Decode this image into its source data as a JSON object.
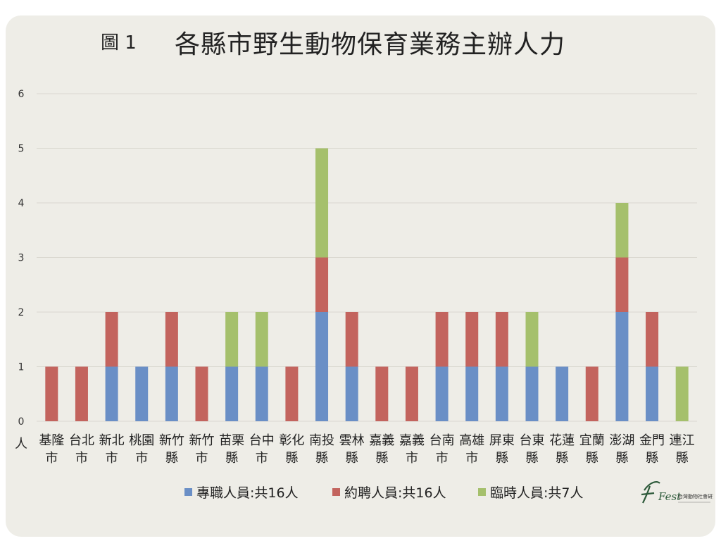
{
  "figure_label": "圖 1",
  "title": "各縣市野生動物保育業務主辦人力",
  "colors": {
    "fulltime": "#6a8fc6",
    "contract": "#c3645e",
    "temporary": "#a5c06c",
    "grid": "#dad8d0",
    "background": "#eeede7"
  },
  "logo": {
    "script_text": "Fest",
    "caption": "台灣動物社會研究會",
    "icon": "organization-logo"
  },
  "chart_data": {
    "type": "bar",
    "stacked": true,
    "title": "各縣市野生動物保育業務主辦人力",
    "ylabel": "人",
    "xlabel": "",
    "ylim": [
      0,
      6
    ],
    "yticks": [
      0,
      1,
      2,
      3,
      4,
      5,
      6
    ],
    "grid": true,
    "legend_position": "bottom",
    "categories": [
      [
        "基隆",
        "市"
      ],
      [
        "台北",
        "市"
      ],
      [
        "新北",
        "市"
      ],
      [
        "桃園",
        "市"
      ],
      [
        "新竹",
        "縣"
      ],
      [
        "新竹",
        "市"
      ],
      [
        "苗栗",
        "縣"
      ],
      [
        "台中",
        "市"
      ],
      [
        "彰化",
        "縣"
      ],
      [
        "南投",
        "縣"
      ],
      [
        "雲林",
        "縣"
      ],
      [
        "嘉義",
        "縣"
      ],
      [
        "嘉義",
        "市"
      ],
      [
        "台南",
        "市"
      ],
      [
        "高雄",
        "市"
      ],
      [
        "屏東",
        "縣"
      ],
      [
        "台東",
        "縣"
      ],
      [
        "花蓮",
        "縣"
      ],
      [
        "宜蘭",
        "縣"
      ],
      [
        "澎湖",
        "縣"
      ],
      [
        "金門",
        "縣"
      ],
      [
        "連江",
        "縣"
      ]
    ],
    "series": [
      {
        "name": "專職人員:共16人",
        "color": "#6a8fc6",
        "values": [
          0,
          0,
          1,
          1,
          1,
          0,
          1,
          1,
          0,
          2,
          1,
          0,
          0,
          1,
          1,
          1,
          1,
          1,
          0,
          2,
          1,
          0
        ]
      },
      {
        "name": "約聘人員:共16人",
        "color": "#c3645e",
        "values": [
          1,
          1,
          1,
          0,
          1,
          1,
          0,
          0,
          1,
          1,
          1,
          1,
          1,
          1,
          1,
          1,
          0,
          0,
          1,
          1,
          1,
          0
        ]
      },
      {
        "name": "臨時人員:共7人",
        "color": "#a5c06c",
        "values": [
          0,
          0,
          0,
          0,
          0,
          0,
          1,
          1,
          0,
          2,
          0,
          0,
          0,
          0,
          0,
          0,
          1,
          0,
          0,
          1,
          0,
          1
        ]
      }
    ]
  }
}
